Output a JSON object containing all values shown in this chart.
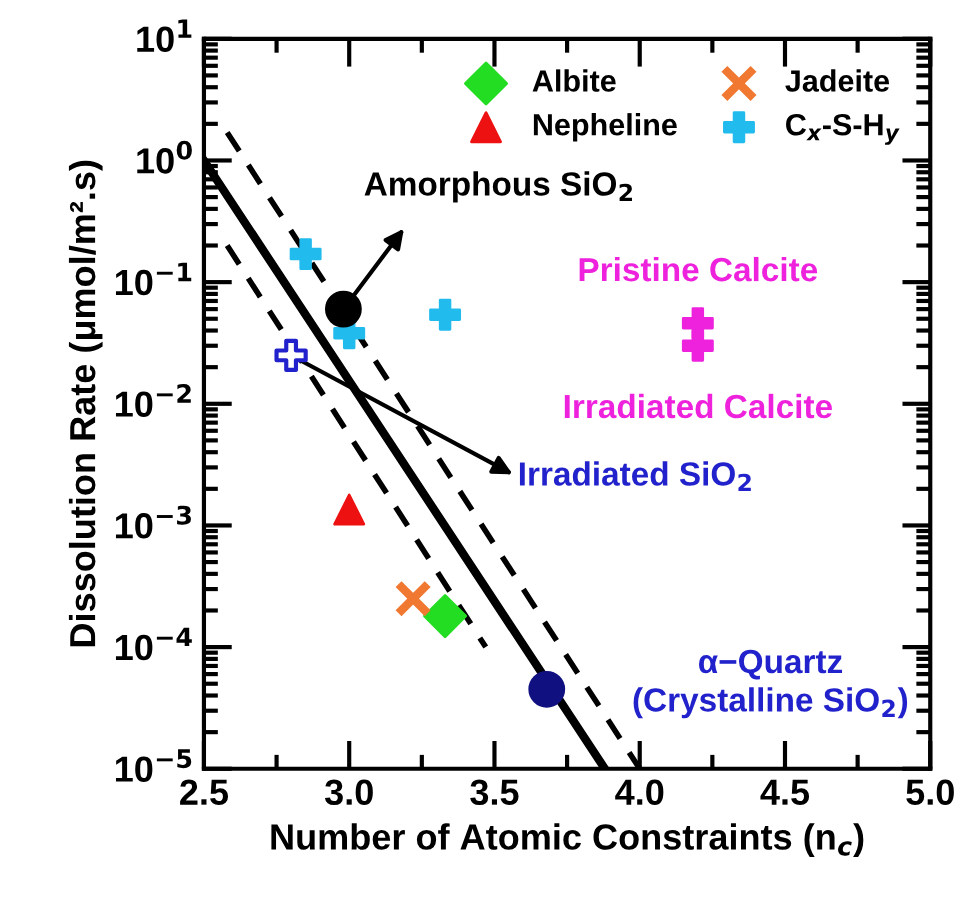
{
  "chart_data": {
    "type": "scatter",
    "xlabel": "Number of Atomic Constraints (n$_{c}$)",
    "ylabel": "Dissolution Rate (μmol/m².s)",
    "log": "y",
    "xlim": [
      2.5,
      5.0
    ],
    "ylim": [
      1e-05,
      10
    ],
    "xticks": [
      {
        "value": 2.5,
        "label": "2.5"
      },
      {
        "value": 3.0,
        "label": "3.0"
      },
      {
        "value": 3.5,
        "label": "3.5"
      },
      {
        "value": 4.0,
        "label": "4.0"
      },
      {
        "value": 4.5,
        "label": "4.5"
      },
      {
        "value": 5.0,
        "label": "5.0"
      }
    ],
    "yticks": [
      {
        "value": 1e-05,
        "label": "10$^{−5}$"
      },
      {
        "value": 0.0001,
        "label": "10$^{−4}$"
      },
      {
        "value": 0.001,
        "label": "10$^{−3}$"
      },
      {
        "value": 0.01,
        "label": "10$^{−2}$"
      },
      {
        "value": 0.1,
        "label": "10$^{−1}$"
      },
      {
        "value": 1,
        "label": "10$^{0}$"
      },
      {
        "value": 10,
        "label": "10$^{1}$"
      }
    ],
    "grid": false,
    "legend": "top right",
    "series": [
      {
        "name": "Albite",
        "color": "#22dd22",
        "marker": "diamond",
        "x": [
          3.33
        ],
        "values": [
          0.00018
        ]
      },
      {
        "name": "Nepheline",
        "color": "#ee1111",
        "marker": "triangle",
        "x": [
          3.0
        ],
        "values": [
          0.00135
        ]
      },
      {
        "name": "Jadeite",
        "color": "#f07830",
        "marker": "x",
        "x": [
          3.22
        ],
        "values": [
          0.00025
        ]
      },
      {
        "name": "C$_{x}$-S-H$_{y}$",
        "color": "#22bbee",
        "marker": "cross",
        "x": [
          2.85,
          3.0,
          3.33
        ],
        "values": [
          0.17,
          0.038,
          0.054
        ]
      },
      {
        "color": "#000000",
        "marker": "circle",
        "x": [
          2.98
        ],
        "values": [
          0.06
        ]
      },
      {
        "color": "#2222cc",
        "marker": "cross",
        "x": [
          2.8
        ],
        "values": [
          0.025
        ]
      },
      {
        "color": "#ee22dd",
        "marker": "cross",
        "x": [
          4.2,
          4.2
        ],
        "values": [
          0.046,
          0.03
        ]
      },
      {
        "color": "#101080",
        "marker": "circle",
        "x": [
          3.68
        ],
        "values": [
          4.5e-05
        ]
      },
      {
        "type": "line",
        "color": "#000000",
        "line_style": "solid",
        "x": [
          2.5,
          3.88
        ],
        "values": [
          1.0,
          1e-05
        ]
      },
      {
        "type": "line",
        "color": "#000000",
        "line_style": "dashed",
        "x": [
          2.58,
          4.0
        ],
        "values": [
          1.7,
          1e-05
        ]
      },
      {
        "type": "line",
        "color": "#000000",
        "line_style": "dashed",
        "x": [
          2.58,
          3.47
        ],
        "values": [
          0.2,
          0.0001
        ]
      }
    ],
    "annotations": [
      {
        "text": "Amorphous SiO$_{2}$",
        "x": 2.98,
        "y": 0.06
      },
      {
        "text": "Irradiated SiO$_{2}$",
        "x": 2.8,
        "y": 0.025
      },
      "Pristine Calcite",
      "Irradiated Calcite",
      "α−Quartz\n(Crystalline SiO$_{2}$)"
    ]
  }
}
